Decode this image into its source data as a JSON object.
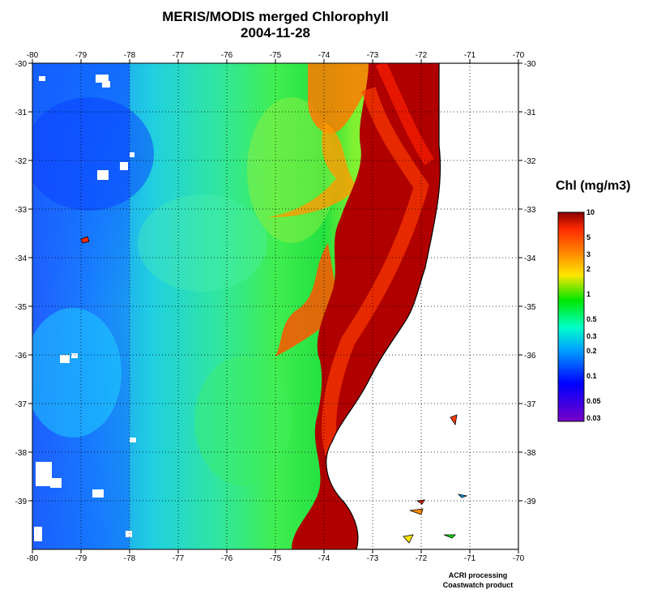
{
  "title": "MERIS/MODIS merged Chlorophyll",
  "date": "2004-11-28",
  "map": {
    "lon_range": [
      -80,
      -70
    ],
    "lat_range": [
      -40,
      -30
    ],
    "lon_ticks": [
      "-80",
      "-79",
      "-78",
      "-77",
      "-76",
      "-75",
      "-74",
      "-73",
      "-72",
      "-71",
      "-70"
    ],
    "lat_ticks": [
      "-30",
      "-31",
      "-32",
      "-33",
      "-34",
      "-35",
      "-36",
      "-37",
      "-38",
      "-39"
    ],
    "grid": "dotted",
    "colors": {
      "land": "#ffffff",
      "coastline": "#000000"
    }
  },
  "colorbar": {
    "title": "Chl (mg/m3)",
    "labels": [
      "10",
      "5",
      "3",
      "2",
      "1",
      "0.5",
      "0.3",
      "0.2",
      "0.1",
      "0.05",
      "0.03"
    ],
    "scale": "log",
    "colors": [
      "#8b0000",
      "#ff2a00",
      "#ff8c00",
      "#ffe600",
      "#00e600",
      "#00ffc8",
      "#00a0ff",
      "#0000ff",
      "#7800c8"
    ]
  },
  "credits": [
    "ACRI processing",
    "Coastwatch product"
  ]
}
